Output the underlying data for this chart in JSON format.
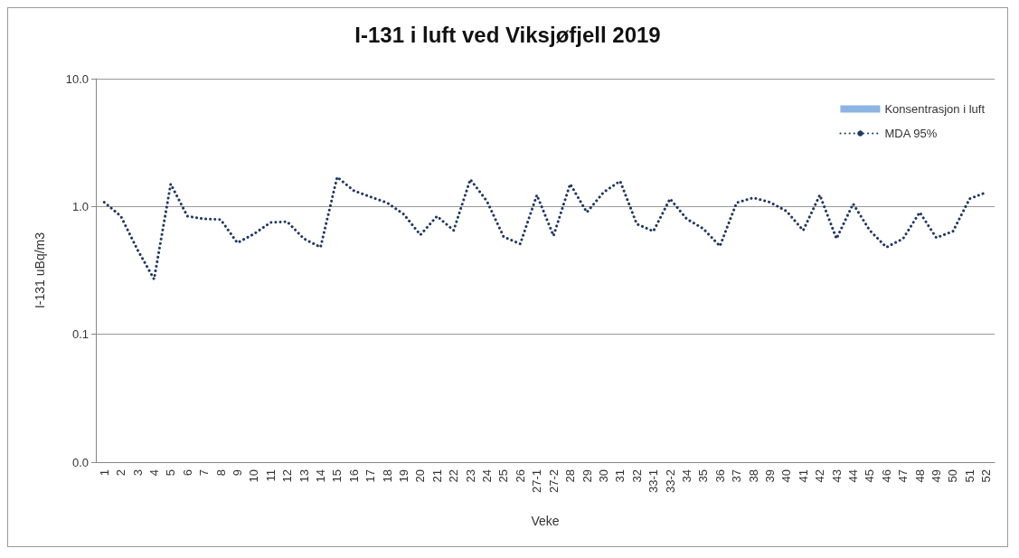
{
  "chart_data": {
    "type": "line",
    "title": "I-131 i luft ved Viksjøfjell 2019",
    "xlabel": "Veke",
    "ylabel": "I-131 uBq/m3",
    "categories": [
      "1",
      "2",
      "3",
      "4",
      "5",
      "6",
      "7",
      "8",
      "9",
      "10",
      "11",
      "12",
      "13",
      "14",
      "15",
      "16",
      "17",
      "18",
      "19",
      "20",
      "21",
      "22",
      "23",
      "24",
      "25",
      "26",
      "27-1",
      "27-2",
      "28",
      "29",
      "30",
      "31",
      "32",
      "33-1",
      "33-2",
      "34",
      "35",
      "36",
      "37",
      "38",
      "39",
      "40",
      "41",
      "42",
      "43",
      "44",
      "45",
      "46",
      "47",
      "48",
      "49",
      "50",
      "51",
      "52"
    ],
    "series": [
      {
        "name": "Konsentrasjon i luft",
        "type": "bar",
        "color": "#8db4e2",
        "values": [
          null,
          null,
          null,
          null,
          null,
          null,
          null,
          null,
          null,
          null,
          null,
          null,
          null,
          null,
          null,
          null,
          null,
          null,
          null,
          null,
          null,
          null,
          null,
          null,
          null,
          null,
          null,
          null,
          null,
          null,
          null,
          null,
          null,
          null,
          null,
          null,
          null,
          null,
          null,
          null,
          null,
          null,
          null,
          null,
          null,
          null,
          null,
          null,
          null,
          null,
          null,
          null,
          null,
          null
        ]
      },
      {
        "name": "MDA 95%",
        "color": "#1f3864",
        "line_style": "dotted",
        "values": [
          1.08,
          0.84,
          0.46,
          0.27,
          1.5,
          0.84,
          0.8,
          0.79,
          0.52,
          0.61,
          0.75,
          0.76,
          0.56,
          0.48,
          1.7,
          1.33,
          1.19,
          1.07,
          0.87,
          0.6,
          0.84,
          0.65,
          1.63,
          1.1,
          0.58,
          0.51,
          1.23,
          0.59,
          1.5,
          0.9,
          1.29,
          1.58,
          0.73,
          0.64,
          1.15,
          0.8,
          0.67,
          0.49,
          1.07,
          1.17,
          1.08,
          0.92,
          0.65,
          1.23,
          0.56,
          1.05,
          0.65,
          0.48,
          0.56,
          0.9,
          0.57,
          0.64,
          1.15,
          1.29
        ]
      }
    ],
    "log": "y",
    "ylim": [
      0.01,
      10
    ],
    "yticks": [
      {
        "value": 0.01,
        "label": "0.0"
      },
      {
        "value": 0.1,
        "label": "0.1"
      },
      {
        "value": 1,
        "label": "1.0"
      },
      {
        "value": 10,
        "label": "10.0"
      }
    ],
    "grid": "y",
    "legend": "top right",
    "marker": "none"
  }
}
